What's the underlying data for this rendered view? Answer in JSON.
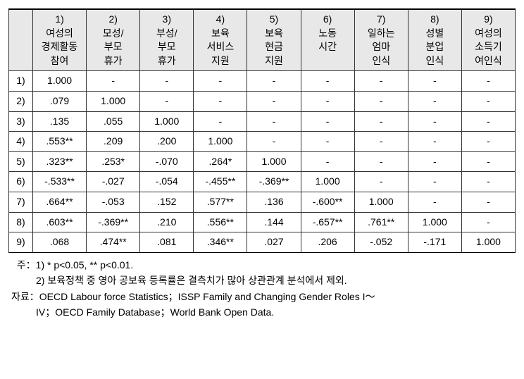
{
  "table": {
    "type": "table",
    "header_bg": "#e8e8e8",
    "border_color": "#333333",
    "top_border": "double",
    "columns": [
      {
        "id": "rowlabel",
        "lines": [
          ""
        ]
      },
      {
        "id": "c1",
        "lines": [
          "1)",
          "여성의",
          "경제활동",
          "참여"
        ]
      },
      {
        "id": "c2",
        "lines": [
          "2)",
          "모성/",
          "부모",
          "휴가"
        ]
      },
      {
        "id": "c3",
        "lines": [
          "3)",
          "부성/",
          "부모",
          "휴가"
        ]
      },
      {
        "id": "c4",
        "lines": [
          "4)",
          "보육",
          "서비스",
          "지원"
        ]
      },
      {
        "id": "c5",
        "lines": [
          "5)",
          "보육",
          "현금",
          "지원"
        ]
      },
      {
        "id": "c6",
        "lines": [
          "6)",
          "노동",
          "시간",
          ""
        ]
      },
      {
        "id": "c7",
        "lines": [
          "7)",
          "일하는",
          "엄마",
          "인식"
        ]
      },
      {
        "id": "c8",
        "lines": [
          "8)",
          "성별",
          "분업",
          "인식"
        ]
      },
      {
        "id": "c9",
        "lines": [
          "9)",
          "여성의",
          "소득기",
          "여인식"
        ]
      }
    ],
    "rows": [
      {
        "label": "1)",
        "cells": [
          "1.000",
          "-",
          "-",
          "-",
          "-",
          "-",
          "-",
          "-",
          "-"
        ]
      },
      {
        "label": "2)",
        "cells": [
          ".079",
          "1.000",
          "-",
          "-",
          "-",
          "-",
          "-",
          "-",
          "-"
        ]
      },
      {
        "label": "3)",
        "cells": [
          ".135",
          ".055",
          "1.000",
          "-",
          "-",
          "-",
          "-",
          "-",
          "-"
        ]
      },
      {
        "label": "4)",
        "cells": [
          ".553**",
          ".209",
          ".200",
          "1.000",
          "-",
          "-",
          "-",
          "-",
          "-"
        ]
      },
      {
        "label": "5)",
        "cells": [
          ".323**",
          ".253*",
          "-.070",
          ".264*",
          "1.000",
          "-",
          "-",
          "-",
          "-"
        ]
      },
      {
        "label": "6)",
        "cells": [
          "-.533**",
          "-.027",
          "-.054",
          "-.455**",
          "-.369**",
          "1.000",
          "-",
          "-",
          "-"
        ]
      },
      {
        "label": "7)",
        "cells": [
          ".664**",
          "-.053",
          ".152",
          ".577**",
          ".136",
          "-.600**",
          "1.000",
          "-",
          "-"
        ]
      },
      {
        "label": "8)",
        "cells": [
          ".603**",
          "-.369**",
          ".210",
          ".556**",
          ".144",
          "-.657**",
          ".761**",
          "1.000",
          "-"
        ]
      },
      {
        "label": "9)",
        "cells": [
          ".068",
          ".474**",
          ".081",
          ".346**",
          ".027",
          ".206",
          "-.052",
          "-.171",
          "1.000"
        ]
      }
    ]
  },
  "notes": {
    "note_label": "  주：",
    "note1": "1) * p<0.05, ** p<0.01.",
    "note2_indent": "         ",
    "note2": "2) 보육정책 중 영아 공보육 등록률은 결측치가 많아 상관관계 분석에서 제외.",
    "source_label": "자료：",
    "source1": "OECD Labour force Statistics；ISSP Family and Changing Gender Roles I～",
    "source2_indent": "         ",
    "source2": "IV；OECD Family Database；World Bank Open Data."
  }
}
